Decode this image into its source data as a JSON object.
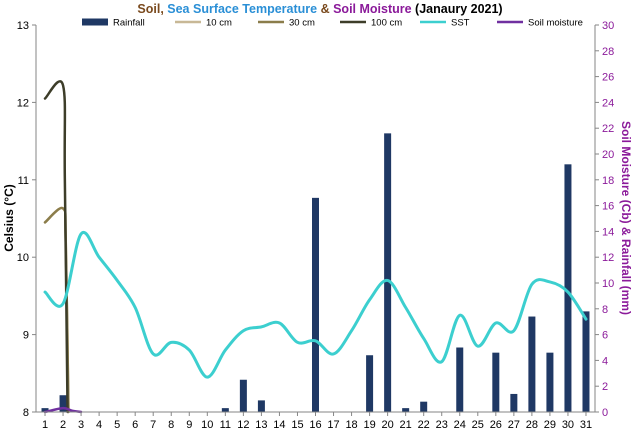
{
  "chart_data": {
    "type": "bar",
    "title": {
      "segments": [
        {
          "text": "Soil",
          "color": "#7a4a1e"
        },
        {
          "text": ", ",
          "color": "#7a4a1e"
        },
        {
          "text": "Sea Surface Temperature",
          "color": "#2a8fd6"
        },
        {
          "text": " & ",
          "color": "#7a4a1e"
        },
        {
          "text": "Soil Moisture",
          "color": "#8b1a9a"
        },
        {
          "text": " (Janaury 2021)",
          "color": "#000000"
        }
      ]
    },
    "ylabel_left": "Celsius (°C)",
    "ylabel_right": "Soil Moisture (Cb) & Rainfall (mm)",
    "y_left_range": [
      8,
      13
    ],
    "y_left_ticks": [
      "8",
      "9",
      "10",
      "11",
      "12",
      "13"
    ],
    "y_right_range": [
      0,
      30
    ],
    "y_right_ticks": [
      "0",
      "2",
      "4",
      "6",
      "8",
      "10",
      "12",
      "14",
      "16",
      "18",
      "20",
      "22",
      "24",
      "26",
      "28",
      "30"
    ],
    "categories": [
      "1",
      "2",
      "3",
      "4",
      "5",
      "6",
      "7",
      "8",
      "9",
      "10",
      "11",
      "12",
      "13",
      "14",
      "15",
      "16",
      "17",
      "18",
      "19",
      "20",
      "21",
      "22",
      "23",
      "24",
      "25",
      "26",
      "27",
      "28",
      "29",
      "30",
      "31"
    ],
    "grid": false,
    "legend_position": "top",
    "series": [
      {
        "name": "Rainfall",
        "type": "bar",
        "axis": "right",
        "color": "#1f3864",
        "values": [
          0.3,
          1.3,
          0,
          0,
          0,
          0,
          0,
          0,
          0,
          0,
          0.3,
          2.5,
          0.9,
          0,
          0,
          16.6,
          0,
          0,
          4.4,
          21.6,
          0.3,
          0.8,
          0,
          5,
          0,
          4.6,
          1.4,
          7.4,
          4.6,
          19.2,
          7.8
        ]
      },
      {
        "name": "10 cm",
        "type": "line",
        "axis": "left",
        "color": "#c8b896",
        "x": [
          1,
          2,
          2.15,
          2.3
        ],
        "values": [
          10.45,
          10.63,
          10.2,
          8.0
        ]
      },
      {
        "name": "30 cm",
        "type": "line",
        "axis": "left",
        "color": "#8b7d4b",
        "x": [
          1,
          2,
          2.15,
          2.3
        ],
        "values": [
          10.45,
          10.63,
          10.2,
          8.0
        ]
      },
      {
        "name": "100 cm",
        "type": "line",
        "axis": "left",
        "color": "#3d3d29",
        "x": [
          1,
          2,
          2.1,
          2.25
        ],
        "values": [
          12.05,
          12.22,
          11.0,
          8.0
        ]
      },
      {
        "name": "SST",
        "type": "line",
        "axis": "left",
        "color": "#3ccfcf",
        "values": [
          9.55,
          9.4,
          10.3,
          10.0,
          9.7,
          9.35,
          8.75,
          8.9,
          8.8,
          8.45,
          8.8,
          9.05,
          9.1,
          9.15,
          8.9,
          8.92,
          8.75,
          9.05,
          9.45,
          9.7,
          9.35,
          8.95,
          8.65,
          9.25,
          8.85,
          9.15,
          9.05,
          9.65,
          9.68,
          9.55,
          9.2
        ]
      },
      {
        "name": "Soil moisture",
        "type": "line",
        "axis": "right",
        "color": "#7030a0",
        "x": [
          1,
          2,
          2.5,
          3
        ],
        "values": [
          0,
          0.3,
          0.1,
          0
        ]
      }
    ]
  }
}
